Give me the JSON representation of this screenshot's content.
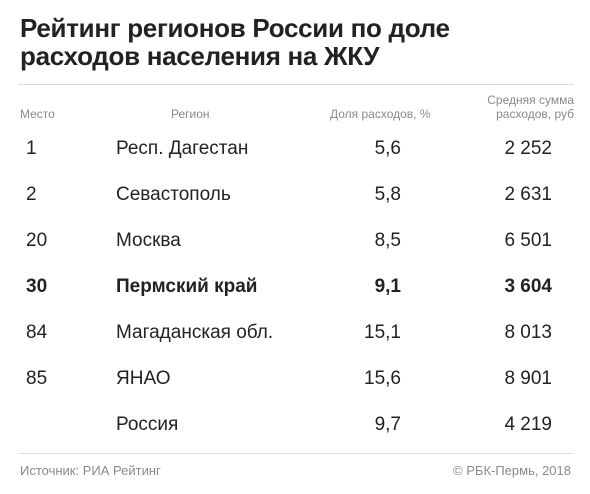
{
  "title": "Рейтинг регионов России по доле расходов населения на ЖКУ",
  "headers": {
    "rank": "Место",
    "region": "Регион",
    "share": "Доля расходов, %",
    "avg": "Средняя сумма расходов, руб"
  },
  "rows": [
    {
      "rank": "1",
      "region": "Респ. Дагестан",
      "share": "5,6",
      "avg": "2 252"
    },
    {
      "rank": "2",
      "region": "Севастополь",
      "share": "5,8",
      "avg": "2 631"
    },
    {
      "rank": "20",
      "region": "Москва",
      "share": "8,5",
      "avg": "6 501"
    },
    {
      "rank": "30",
      "region": "Пермский край",
      "share": "9,1",
      "avg": "3 604"
    },
    {
      "rank": "84",
      "region": "Магаданская обл.",
      "share": "15,1",
      "avg": "8 013"
    },
    {
      "rank": "85",
      "region": "ЯНАО",
      "share": "15,6",
      "avg": "8 901"
    },
    {
      "rank": "",
      "region": "Россия",
      "share": "9,7",
      "avg": "4 219"
    }
  ],
  "footer": {
    "source": "Источник: РИА Рейтинг",
    "copyright": "© РБК-Пермь, 2018"
  }
}
